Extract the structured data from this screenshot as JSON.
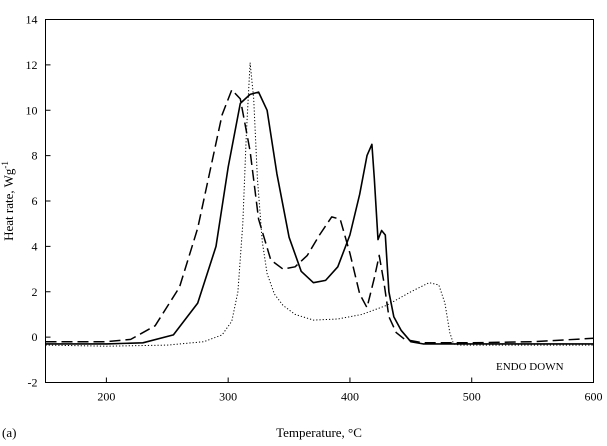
{
  "figure_label": "(a)",
  "annotation": "ENDO DOWN",
  "chart_data": {
    "type": "line",
    "title": "",
    "xlabel": "Temperature, °C",
    "ylabel_main": "Heat rate, Wg",
    "ylabel_sup": "-1",
    "xlim": [
      150,
      600
    ],
    "ylim": [
      -2,
      14
    ],
    "xticks": [
      200,
      300,
      400,
      500,
      600
    ],
    "yticks": [
      -2,
      0,
      2,
      4,
      6,
      8,
      10,
      12,
      14
    ],
    "grid": false,
    "series": [
      {
        "style": "solid",
        "x": [
          150,
          200,
          230,
          255,
          275,
          290,
          300,
          310,
          318,
          325,
          332,
          340,
          350,
          360,
          370,
          380,
          390,
          400,
          408,
          414,
          418,
          420,
          423,
          426,
          429,
          432,
          436,
          442,
          450,
          460,
          480,
          500,
          550,
          600
        ],
        "y": [
          -0.3,
          -0.3,
          -0.25,
          0.1,
          1.5,
          4.0,
          7.5,
          10.3,
          10.7,
          10.8,
          10.0,
          7.2,
          4.4,
          2.9,
          2.4,
          2.5,
          3.1,
          4.5,
          6.3,
          8.0,
          8.5,
          7.0,
          4.3,
          4.7,
          4.5,
          2.0,
          0.9,
          0.3,
          -0.2,
          -0.3,
          -0.3,
          -0.3,
          -0.3,
          -0.3
        ]
      },
      {
        "style": "dashed",
        "x": [
          150,
          200,
          220,
          240,
          260,
          275,
          285,
          295,
          303,
          310,
          318,
          325,
          335,
          345,
          355,
          365,
          375,
          385,
          392,
          400,
          408,
          414,
          420,
          424,
          428,
          432,
          438,
          445,
          460,
          500,
          550,
          600
        ],
        "y": [
          -0.2,
          -0.2,
          -0.1,
          0.5,
          2.2,
          4.8,
          7.3,
          9.8,
          10.9,
          10.5,
          8.2,
          5.2,
          3.4,
          3.0,
          3.1,
          3.6,
          4.5,
          5.3,
          5.2,
          3.7,
          1.9,
          1.3,
          2.6,
          3.6,
          2.4,
          0.9,
          0.2,
          -0.1,
          -0.25,
          -0.25,
          -0.2,
          -0.05
        ]
      },
      {
        "style": "dotted",
        "x": [
          150,
          200,
          250,
          280,
          295,
          303,
          308,
          312,
          315,
          318,
          321,
          324,
          328,
          332,
          338,
          345,
          355,
          370,
          390,
          410,
          430,
          450,
          465,
          473,
          478,
          482,
          485,
          490,
          500,
          550,
          600
        ],
        "y": [
          -0.35,
          -0.4,
          -0.35,
          -0.2,
          0.1,
          0.7,
          2.0,
          5.0,
          9.0,
          12.1,
          10.5,
          7.0,
          4.2,
          2.8,
          1.9,
          1.4,
          1.0,
          0.75,
          0.8,
          1.0,
          1.4,
          2.0,
          2.4,
          2.3,
          1.5,
          0.2,
          -0.3,
          -0.35,
          -0.35,
          -0.35,
          -0.35
        ]
      }
    ]
  }
}
